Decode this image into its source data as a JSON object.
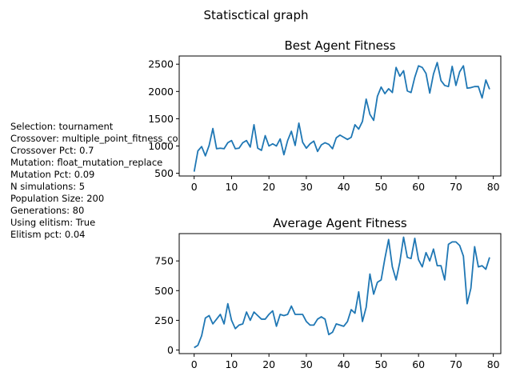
{
  "figure": {
    "suptitle": "Statisctical graph"
  },
  "settings_text": [
    "Selection: tournament",
    "Crossover: multiple_point_fitness_co",
    "Crossover Pct: 0.7",
    "Mutation: float_mutation_replace",
    "Mutation Pct: 0.09",
    "N simulations: 5",
    "Population Size: 200",
    "Generations: 80",
    "Using elitism: True",
    "Elitism pct: 0.04"
  ],
  "colors": {
    "series": "#1f77b4"
  },
  "chart_data": [
    {
      "type": "line",
      "title": "Best Agent Fitness",
      "xlabel": "",
      "ylabel": "",
      "xlim": [
        -4,
        82
      ],
      "ylim": [
        450,
        2650
      ],
      "xticks": [
        0,
        10,
        20,
        30,
        40,
        50,
        60,
        70,
        80
      ],
      "yticks": [
        500,
        1000,
        1500,
        2000,
        2500
      ],
      "grid": false,
      "x": [
        0,
        1,
        2,
        3,
        4,
        5,
        6,
        7,
        8,
        9,
        10,
        11,
        12,
        13,
        14,
        15,
        16,
        17,
        18,
        19,
        20,
        21,
        22,
        23,
        24,
        25,
        26,
        27,
        28,
        29,
        30,
        31,
        32,
        33,
        34,
        35,
        36,
        37,
        38,
        39,
        40,
        41,
        42,
        43,
        44,
        45,
        46,
        47,
        48,
        49,
        50,
        51,
        52,
        53,
        54,
        55,
        56,
        57,
        58,
        59,
        60,
        61,
        62,
        63,
        64,
        65,
        66,
        67,
        68,
        69,
        70,
        71,
        72,
        73,
        74,
        75,
        76,
        77,
        78,
        79
      ],
      "series": [
        {
          "values": [
            530,
            910,
            990,
            820,
            1010,
            1320,
            950,
            960,
            950,
            1060,
            1100,
            950,
            960,
            1060,
            1100,
            980,
            1390,
            960,
            920,
            1190,
            1000,
            1040,
            1000,
            1130,
            840,
            1100,
            1270,
            1010,
            1420,
            1070,
            960,
            1040,
            1090,
            900,
            1020,
            1060,
            1030,
            950,
            1150,
            1200,
            1160,
            1120,
            1160,
            1390,
            1310,
            1450,
            1860,
            1580,
            1470,
            1910,
            2080,
            1960,
            2050,
            1980,
            2440,
            2280,
            2380,
            2010,
            1980,
            2260,
            2470,
            2440,
            2330,
            1970,
            2320,
            2530,
            2200,
            2110,
            2090,
            2460,
            2110,
            2360,
            2470,
            2060,
            2070,
            2090,
            2090,
            1880,
            2210,
            2040
          ]
        }
      ]
    },
    {
      "type": "line",
      "title": "Average Agent Fitness",
      "xlabel": "",
      "ylabel": "",
      "xlim": [
        -4,
        82
      ],
      "ylim": [
        -30,
        980
      ],
      "xticks": [
        0,
        10,
        20,
        30,
        40,
        50,
        60,
        70,
        80
      ],
      "yticks": [
        0,
        250,
        500,
        750
      ],
      "grid": false,
      "x": [
        0,
        1,
        2,
        3,
        4,
        5,
        6,
        7,
        8,
        9,
        10,
        11,
        12,
        13,
        14,
        15,
        16,
        17,
        18,
        19,
        20,
        21,
        22,
        23,
        24,
        25,
        26,
        27,
        28,
        29,
        30,
        31,
        32,
        33,
        34,
        35,
        36,
        37,
        38,
        39,
        40,
        41,
        42,
        43,
        44,
        45,
        46,
        47,
        48,
        49,
        50,
        51,
        52,
        53,
        54,
        55,
        56,
        57,
        58,
        59,
        60,
        61,
        62,
        63,
        64,
        65,
        66,
        67,
        68,
        69,
        70,
        71,
        72,
        73,
        74,
        75,
        76,
        77,
        78,
        79
      ],
      "series": [
        {
          "values": [
            20,
            40,
            120,
            270,
            290,
            220,
            260,
            300,
            220,
            390,
            250,
            180,
            210,
            220,
            320,
            250,
            320,
            290,
            260,
            260,
            300,
            330,
            200,
            300,
            290,
            300,
            370,
            300,
            300,
            300,
            240,
            210,
            210,
            260,
            280,
            260,
            130,
            150,
            220,
            210,
            200,
            240,
            340,
            310,
            490,
            240,
            360,
            640,
            470,
            570,
            590,
            770,
            930,
            700,
            590,
            740,
            950,
            780,
            770,
            940,
            760,
            700,
            820,
            750,
            850,
            710,
            710,
            590,
            890,
            910,
            910,
            880,
            790,
            390,
            520,
            870,
            700,
            710,
            680,
            780
          ]
        }
      ]
    }
  ]
}
